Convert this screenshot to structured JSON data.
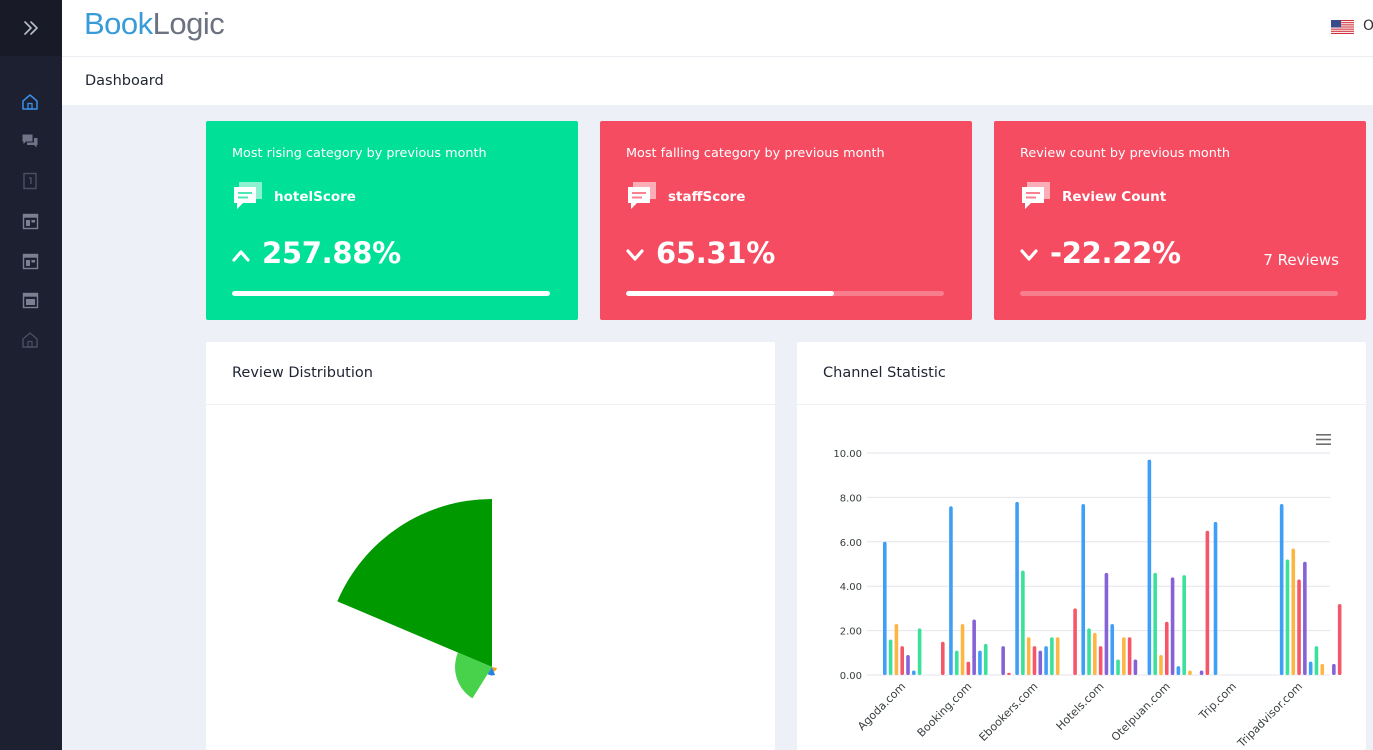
{
  "brand": {
    "first": "Book",
    "second": "Logic"
  },
  "header": {
    "user_initial": "O",
    "flag_icon": "us-flag-icon"
  },
  "page": {
    "title": "Dashboard"
  },
  "sidebar": {
    "toggle_icon": "chevrons-right-icon",
    "items": [
      {
        "icon": "home-icon",
        "active": true
      },
      {
        "icon": "chat-bubbles-icon",
        "active": false
      },
      {
        "icon": "document-icon",
        "active": false
      },
      {
        "icon": "window-icon",
        "active": false
      },
      {
        "icon": "window-icon",
        "active": false
      },
      {
        "icon": "window-icon",
        "active": false
      },
      {
        "icon": "building-icon",
        "active": false
      }
    ]
  },
  "cards": [
    {
      "caption": "Most rising category by previous month",
      "category": "hotelScore",
      "direction": "up",
      "percent": "257.88%",
      "progress": 1.0,
      "color": "#00e096"
    },
    {
      "caption": "Most falling category by previous month",
      "category": "staffScore",
      "direction": "down",
      "percent": "65.31%",
      "progress": 0.655,
      "color": "#f64c62"
    },
    {
      "caption": "Review count by previous month",
      "category": "Review Count",
      "direction": "down",
      "percent": "-22.22%",
      "reviews": "7 Reviews",
      "progress": 0,
      "color": "#f64c62"
    }
  ],
  "panels": {
    "distribution": {
      "title": "Review Distribution"
    },
    "channel": {
      "title": "Channel Statistic"
    }
  },
  "chart_data": [
    {
      "type": "polar-area",
      "segments": [
        {
          "start_deg": 0,
          "end_deg": 67,
          "radius": 1.0,
          "color": "#009900"
        },
        {
          "start_deg": 67,
          "end_deg": 148,
          "radius": 0.22,
          "color": "#48d14a"
        },
        {
          "start_deg": 148,
          "end_deg": 201,
          "radius": 0.05,
          "color": "#2781e0"
        },
        {
          "start_deg": 201,
          "end_deg": 258,
          "radius": 0.03,
          "color": "#f6a21a"
        }
      ]
    },
    {
      "type": "bar",
      "categories": [
        "Agoda.com",
        "Booking.com",
        "Ebookers.com",
        "Hotels.com",
        "Otelpuan.com",
        "Trip.com",
        "Tripadvisor.com"
      ],
      "ylim": [
        0,
        10
      ],
      "yticks": [
        "0.00",
        "2.00",
        "4.00",
        "6.00",
        "8.00",
        "10.00"
      ],
      "colors": [
        "#3f9ff7",
        "#3ae19b",
        "#fdb643",
        "#f5566a",
        "#8662d7",
        "#3f9ff7",
        "#3ae19b",
        "#fdb643",
        "#f5566a",
        "#8662d7",
        "#f5566a"
      ],
      "values": [
        [
          6.0,
          1.6,
          2.3,
          1.3,
          0.9,
          0.2,
          2.1,
          0,
          0,
          0,
          1.5
        ],
        [
          7.6,
          1.1,
          2.3,
          0.6,
          2.5,
          1.1,
          1.4,
          0,
          0,
          1.3,
          0.1
        ],
        [
          7.8,
          4.7,
          1.7,
          1.3,
          1.1,
          1.3,
          1.7,
          1.7,
          0,
          0,
          3.0
        ],
        [
          7.7,
          2.1,
          1.9,
          1.3,
          4.6,
          2.3,
          0.7,
          1.7,
          1.7,
          0.7,
          0
        ],
        [
          9.7,
          4.6,
          0.9,
          2.4,
          4.4,
          0.4,
          4.5,
          0.2,
          0,
          0.2,
          6.5
        ],
        [
          6.9,
          0,
          0,
          0,
          0,
          0,
          0,
          0,
          0,
          0,
          0
        ],
        [
          7.7,
          5.2,
          5.7,
          4.3,
          5.1,
          0.6,
          1.3,
          0.5,
          0,
          0.5,
          3.2
        ]
      ]
    }
  ]
}
